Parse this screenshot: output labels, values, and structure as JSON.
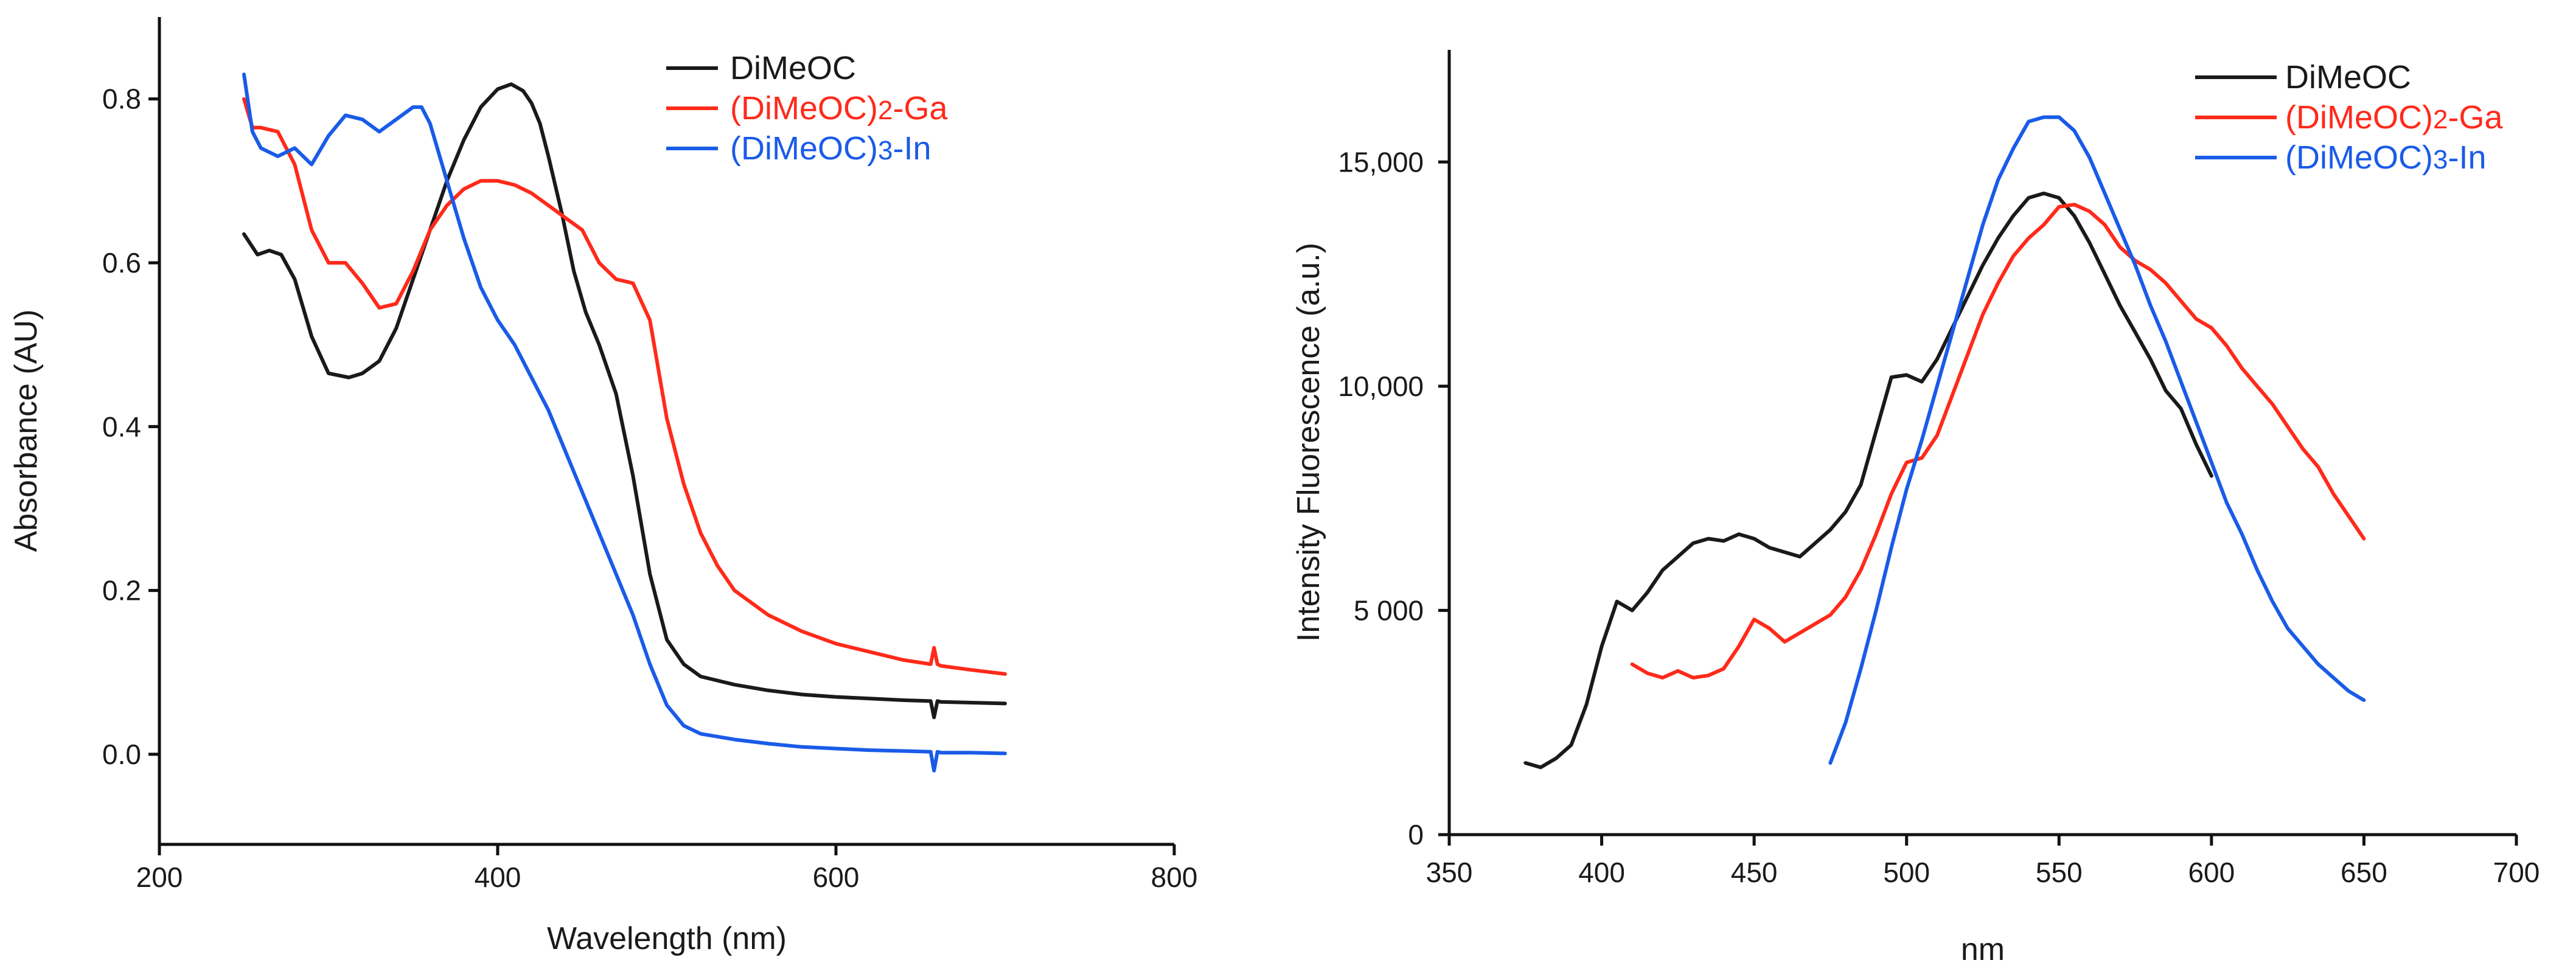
{
  "chart_data": [
    {
      "type": "line",
      "title": "",
      "xlabel": "Wavelength (nm)",
      "ylabel": "Absorbance (AU)",
      "xlim": [
        200,
        800
      ],
      "ylim": [
        -0.11,
        0.9
      ],
      "xticks": [
        200,
        400,
        600,
        800
      ],
      "yticks": [
        0.0,
        0.2,
        0.4,
        0.6,
        0.8
      ],
      "xtick_labels": [
        "200",
        "400",
        "600",
        "800"
      ],
      "ytick_labels": [
        "0.0",
        "0.2",
        "0.4",
        "0.6",
        "0.8"
      ],
      "grid": false,
      "legend_position": "top-right",
      "series": [
        {
          "name": "DiMeOC",
          "color": "#1a1a1a",
          "x": [
            250,
            258,
            265,
            272,
            280,
            290,
            300,
            312,
            320,
            330,
            340,
            350,
            360,
            370,
            380,
            390,
            400,
            408,
            415,
            420,
            425,
            430,
            438,
            445,
            452,
            460,
            470,
            480,
            490,
            500,
            510,
            520,
            540,
            560,
            580,
            600,
            620,
            640,
            656,
            658,
            660,
            662,
            680,
            700
          ],
          "y": [
            0.635,
            0.61,
            0.615,
            0.61,
            0.58,
            0.51,
            0.465,
            0.46,
            0.465,
            0.48,
            0.52,
            0.58,
            0.64,
            0.7,
            0.75,
            0.79,
            0.812,
            0.818,
            0.81,
            0.795,
            0.77,
            0.73,
            0.66,
            0.59,
            0.54,
            0.5,
            0.44,
            0.34,
            0.22,
            0.14,
            0.11,
            0.095,
            0.085,
            0.078,
            0.073,
            0.07,
            0.068,
            0.066,
            0.065,
            0.045,
            0.065,
            0.064,
            0.063,
            0.062
          ]
        },
        {
          "name": "(DiMeOC)2-Ga",
          "color": "#ff2a1a",
          "x": [
            250,
            255,
            260,
            270,
            280,
            290,
            300,
            310,
            320,
            330,
            340,
            350,
            360,
            370,
            380,
            390,
            400,
            410,
            420,
            430,
            440,
            450,
            460,
            470,
            480,
            490,
            495,
            500,
            510,
            520,
            530,
            540,
            560,
            580,
            600,
            620,
            640,
            656,
            658,
            660,
            662,
            680,
            700
          ],
          "y": [
            0.8,
            0.765,
            0.765,
            0.76,
            0.72,
            0.64,
            0.6,
            0.6,
            0.575,
            0.545,
            0.55,
            0.59,
            0.64,
            0.67,
            0.69,
            0.7,
            0.7,
            0.695,
            0.685,
            0.67,
            0.655,
            0.64,
            0.6,
            0.58,
            0.575,
            0.53,
            0.47,
            0.41,
            0.33,
            0.27,
            0.23,
            0.2,
            0.17,
            0.15,
            0.135,
            0.125,
            0.115,
            0.11,
            0.13,
            0.11,
            0.108,
            0.103,
            0.098
          ]
        },
        {
          "name": "(DiMeOC)3-In",
          "color": "#1a5be8",
          "x": [
            250,
            255,
            260,
            270,
            280,
            290,
            300,
            310,
            320,
            330,
            340,
            350,
            355,
            360,
            370,
            380,
            390,
            400,
            410,
            420,
            430,
            440,
            450,
            460,
            470,
            480,
            490,
            500,
            510,
            520,
            540,
            560,
            580,
            600,
            620,
            640,
            656,
            658,
            660,
            662,
            680,
            700
          ],
          "y": [
            0.83,
            0.76,
            0.74,
            0.73,
            0.74,
            0.72,
            0.755,
            0.78,
            0.775,
            0.76,
            0.775,
            0.79,
            0.79,
            0.77,
            0.7,
            0.63,
            0.57,
            0.53,
            0.5,
            0.46,
            0.42,
            0.37,
            0.32,
            0.27,
            0.22,
            0.17,
            0.11,
            0.06,
            0.035,
            0.025,
            0.018,
            0.013,
            0.009,
            0.007,
            0.005,
            0.004,
            0.003,
            -0.02,
            0.003,
            0.002,
            0.002,
            0.001
          ]
        }
      ]
    },
    {
      "type": "line",
      "title": "",
      "xlabel": "nm",
      "ylabel": "Intensity Fluorescence (a.u.)",
      "xlim": [
        350,
        700
      ],
      "ylim": [
        0,
        17500
      ],
      "xticks": [
        350,
        400,
        450,
        500,
        550,
        600,
        650,
        700
      ],
      "yticks": [
        0,
        5000,
        10000,
        15000
      ],
      "xtick_labels": [
        "350",
        "400",
        "450",
        "500",
        "550",
        "600",
        "650",
        "700"
      ],
      "ytick_labels": [
        "0",
        "5 000",
        "10,000",
        "15,000"
      ],
      "grid": false,
      "legend_position": "top-right",
      "series": [
        {
          "name": "DiMeOC",
          "color": "#1a1a1a",
          "x": [
            375,
            380,
            385,
            390,
            395,
            400,
            405,
            410,
            415,
            420,
            425,
            430,
            435,
            440,
            445,
            450,
            455,
            460,
            465,
            470,
            475,
            480,
            485,
            490,
            495,
            500,
            505,
            510,
            515,
            520,
            525,
            530,
            535,
            540,
            545,
            550,
            555,
            560,
            565,
            570,
            575,
            580,
            585,
            590,
            595,
            600
          ],
          "y": [
            1600,
            1500,
            1700,
            2000,
            2900,
            4200,
            5200,
            5000,
            5400,
            5900,
            6200,
            6500,
            6600,
            6550,
            6700,
            6600,
            6400,
            6300,
            6200,
            6500,
            6800,
            7200,
            7800,
            9000,
            10200,
            10250,
            10100,
            10600,
            11300,
            12000,
            12700,
            13300,
            13800,
            14200,
            14300,
            14200,
            13800,
            13200,
            12500,
            11800,
            11200,
            10600,
            9900,
            9500,
            8700,
            8000
          ]
        },
        {
          "name": "(DiMeOC)2-Ga",
          "color": "#ff2a1a",
          "x": [
            410,
            415,
            420,
            425,
            430,
            435,
            440,
            445,
            450,
            455,
            460,
            465,
            470,
            475,
            480,
            485,
            490,
            495,
            500,
            505,
            510,
            515,
            520,
            525,
            530,
            535,
            540,
            545,
            550,
            555,
            560,
            565,
            570,
            575,
            580,
            585,
            590,
            595,
            600,
            605,
            610,
            615,
            620,
            625,
            630,
            635,
            640,
            645,
            650
          ],
          "y": [
            3800,
            3600,
            3500,
            3650,
            3500,
            3550,
            3700,
            4200,
            4800,
            4600,
            4300,
            4500,
            4700,
            4900,
            5300,
            5900,
            6700,
            7600,
            8300,
            8400,
            8900,
            9800,
            10700,
            11600,
            12300,
            12900,
            13300,
            13600,
            14000,
            14050,
            13900,
            13600,
            13100,
            12800,
            12600,
            12300,
            11900,
            11500,
            11300,
            10900,
            10400,
            10000,
            9600,
            9100,
            8600,
            8200,
            7600,
            7100,
            6600
          ]
        },
        {
          "name": "(DiMeOC)3-In",
          "color": "#1a5be8",
          "x": [
            475,
            480,
            485,
            490,
            495,
            500,
            505,
            510,
            515,
            520,
            525,
            530,
            535,
            540,
            545,
            550,
            555,
            560,
            565,
            570,
            575,
            580,
            585,
            590,
            595,
            600,
            605,
            610,
            615,
            620,
            625,
            630,
            635,
            640,
            645,
            650
          ],
          "y": [
            1600,
            2500,
            3700,
            5000,
            6400,
            7700,
            8800,
            10000,
            11200,
            12400,
            13600,
            14600,
            15300,
            15900,
            16000,
            16000,
            15700,
            15100,
            14300,
            13500,
            12700,
            11800,
            11000,
            10100,
            9200,
            8300,
            7400,
            6700,
            5900,
            5200,
            4600,
            4200,
            3800,
            3500,
            3200,
            3000
          ]
        }
      ]
    }
  ]
}
